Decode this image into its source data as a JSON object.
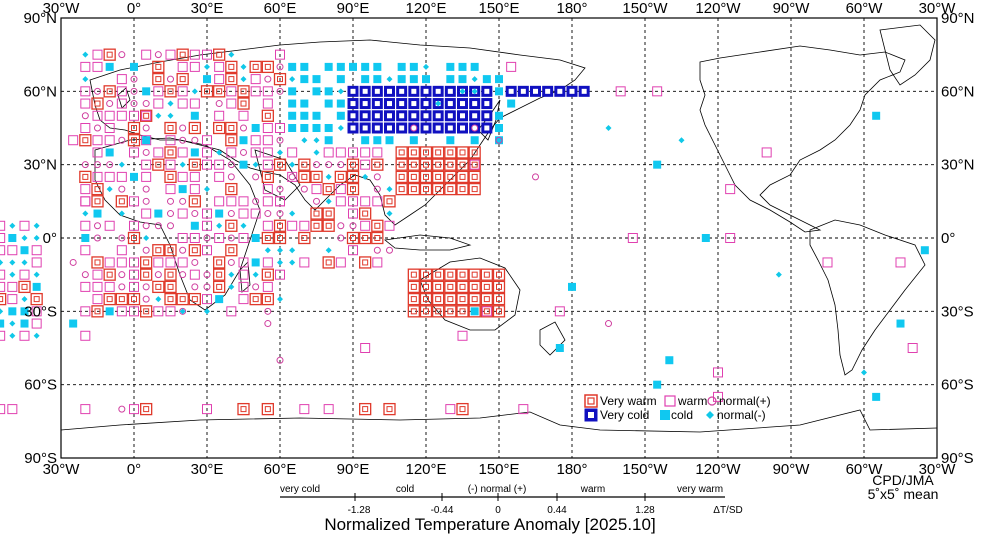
{
  "lon_labels_top": [
    "30°W",
    "0°",
    "30°E",
    "60°E",
    "90°E",
    "120°E",
    "150°E",
    "180°",
    "150°W",
    "120°W",
    "90°W",
    "60°W",
    "30°W"
  ],
  "lon_labels_bottom": [
    "30°W",
    "0°",
    "30°E",
    "60°E",
    "90°E",
    "120°E",
    "150°E",
    "180°",
    "150°W",
    "120°W",
    "90°W",
    "60°W",
    "30°W"
  ],
  "lat_labels": [
    "90°N",
    "60°N",
    "30°N",
    "0°",
    "30°S",
    "60°S",
    "90°S"
  ],
  "credit": {
    "agency": "CPD/JMA",
    "resolution": "5˚x5˚ mean"
  },
  "legend": {
    "very_warm": "Very warm",
    "warm": "warm",
    "normal_plus": "normal(+)",
    "very_cold": "Very cold",
    "cold": "cold",
    "normal_minus": "normal(-)"
  },
  "scale": {
    "categories": [
      "very cold",
      "cold",
      "(-) normal (+)",
      "warm",
      "very warm"
    ],
    "ticks": [
      "-1.28",
      "-0.44",
      "0",
      "0.44",
      "1.28"
    ],
    "unit": "ΔT/SD"
  },
  "title": "Normalized Temperature Anomaly [2025.10]",
  "colors": {
    "very_warm": "#e0392b",
    "warm": "#e040b0",
    "normal_plus": "#d040a0",
    "very_cold": "#1010c0",
    "cold": "#10c8f0",
    "normal_minus": "#10c8e8"
  }
}
